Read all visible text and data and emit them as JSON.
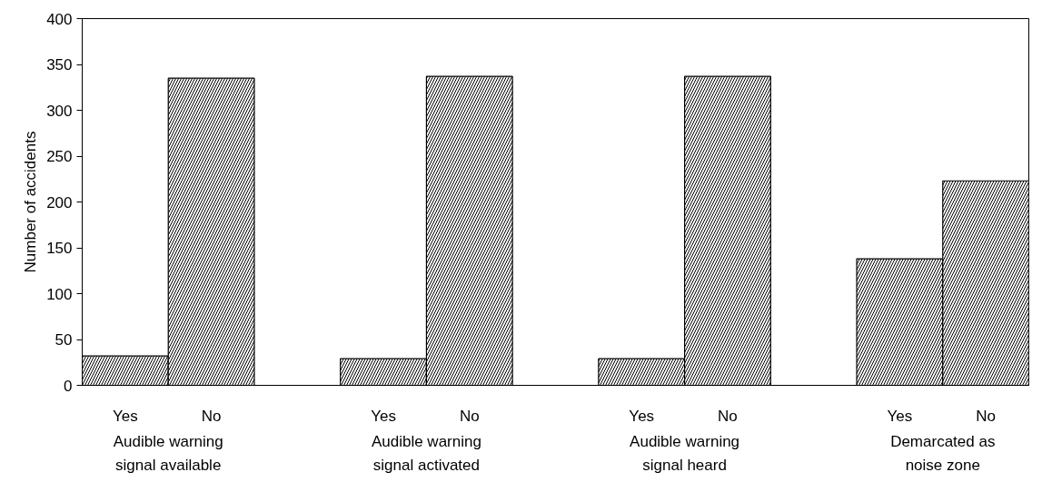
{
  "chart_data": {
    "type": "bar",
    "ylabel": "Number of accidents",
    "categories": [
      "Yes",
      "No",
      null,
      "Yes",
      "No",
      null,
      "Yes",
      "No",
      null,
      "Yes",
      "No"
    ],
    "values": [
      32,
      335,
      null,
      29,
      337,
      null,
      29,
      337,
      null,
      138,
      223
    ],
    "color": "#000000",
    "ylim": [
      0,
      400
    ],
    "yticks": [
      0,
      50,
      100,
      150,
      200,
      250,
      300,
      350,
      400
    ],
    "annotations": [
      "Audible warning\nsignal available",
      "Audible warning\nsignal activated",
      "Audible warning\nsignal heard",
      "Demarcated as\nnoise zone"
    ]
  }
}
